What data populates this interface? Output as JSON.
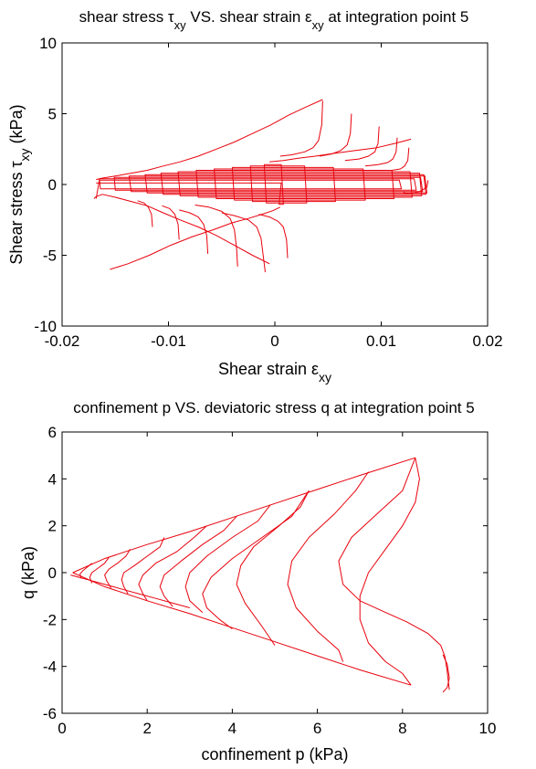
{
  "colors": {
    "series": "#e8000b",
    "axes": "#000000",
    "background": "#ffffff"
  },
  "chart_data": [
    {
      "type": "line",
      "title": "shear stress τxy VS. shear strain εxy at integration point 5",
      "title_parts": {
        "pre": "shear stress τ",
        "sub1": "xy",
        "mid": " VS. shear strain ε",
        "sub2": "xy",
        "post": " at integration point 5"
      },
      "xlabel": "Shear strain εxy",
      "xlabel_parts": {
        "pre": "Shear strain ε",
        "sub": "xy"
      },
      "ylabel": "Shear stress τxy (kPa)",
      "ylabel_parts": {
        "pre": "Shear stress τ",
        "sub": "xy",
        "post": " (kPa)"
      },
      "xlim": [
        -0.02,
        0.02
      ],
      "ylim": [
        -10,
        10
      ],
      "xticks": [
        -0.02,
        -0.01,
        0,
        0.01,
        0.02
      ],
      "xtick_labels": [
        "-0.02",
        "-0.01",
        "0",
        "0.01",
        "0.02"
      ],
      "yticks": [
        -10,
        -5,
        0,
        5,
        10
      ],
      "ytick_labels": [
        "-10",
        "-5",
        "0",
        "5",
        "10"
      ],
      "grid": false,
      "series": [
        {
          "x": [
            -0.0168,
            -0.0165,
            0.0117,
            0.0119,
            -0.0164,
            -0.0165,
            0.0131,
            0.0133,
            -0.015,
            -0.0151,
            0.0137,
            0.0139,
            -0.0135,
            -0.0137,
            0.0141,
            0.0143,
            -0.012,
            -0.0122,
            0.014,
            0.0142,
            -0.0105,
            -0.0107,
            0.0136,
            0.0138,
            -0.0089,
            -0.0091,
            0.0127,
            0.0129,
            -0.0072,
            -0.0074,
            0.011,
            0.0112,
            -0.0055,
            -0.0057,
            0.0083,
            0.0085,
            -0.0038,
            -0.004,
            0.0055,
            0.0057,
            -0.0021,
            -0.0023,
            0.0028,
            0.003,
            -0.0008,
            -0.001,
            0.0006,
            0.0008,
            0.0004,
            0.0006,
            -0.0168
          ],
          "y": [
            -1.0,
            0.3,
            0.3,
            -0.3,
            -0.3,
            0.4,
            0.4,
            -0.4,
            -0.4,
            0.5,
            0.5,
            -0.5,
            -0.5,
            0.6,
            0.6,
            -0.6,
            -0.6,
            0.7,
            0.7,
            -0.7,
            -0.7,
            0.8,
            0.8,
            -0.8,
            -0.8,
            0.9,
            0.9,
            -0.9,
            -0.9,
            1.0,
            1.0,
            -1.0,
            -1.0,
            1.1,
            1.1,
            -1.1,
            -1.1,
            1.2,
            1.2,
            -1.2,
            -1.2,
            1.3,
            1.3,
            -1.3,
            -1.3,
            1.4,
            1.4,
            -1.4,
            -1.4,
            0.1,
            0.1
          ]
        },
        {
          "x": [
            0.0144,
            0.0143,
            0.0136,
            0.013,
            0.0125,
            0.0122,
            0.0121,
            0.0122
          ],
          "y": [
            0.3,
            -0.2,
            -0.5,
            -0.6,
            -0.62,
            -0.62,
            -0.6,
            -0.5
          ]
        },
        {
          "x": [
            -0.017,
            -0.0168,
            -0.0162,
            -0.015,
            -0.0135,
            -0.012,
            -0.0105,
            -0.0089,
            -0.0072,
            -0.0055,
            -0.0038,
            -0.0021,
            -0.0005
          ],
          "y": [
            -1.0,
            -0.85,
            -0.7,
            -0.9,
            -1.2,
            -1.5,
            -2.0,
            -2.5,
            -3.0,
            -3.6,
            -4.3,
            -5.0,
            -5.6
          ]
        },
        {
          "x": [
            -0.0168,
            -0.0162,
            -0.015,
            -0.0135,
            -0.012,
            -0.0105,
            -0.0089,
            -0.0072,
            -0.0055,
            -0.0038,
            -0.0021,
            -0.0004,
            0.0013,
            0.003,
            0.0045
          ],
          "y": [
            0.35,
            0.45,
            0.6,
            0.8,
            1.0,
            1.3,
            1.6,
            2.0,
            2.5,
            3.0,
            3.6,
            4.2,
            4.9,
            5.5,
            6.0
          ]
        },
        {
          "x": [
            -0.0035,
            -0.0036,
            -0.0038,
            -0.0042,
            -0.005,
            -0.0062,
            -0.0075
          ],
          "y": [
            -5.8,
            -4.5,
            -3.2,
            -2.4,
            -1.9,
            -1.6,
            -1.45
          ]
        },
        {
          "x": [
            -0.0009,
            -0.0011,
            -0.0013,
            -0.0017,
            -0.0025,
            -0.0038,
            -0.005
          ],
          "y": [
            -6.2,
            -5.0,
            -3.8,
            -3.0,
            -2.5,
            -2.2,
            -2.0
          ]
        },
        {
          "x": [
            0.0045,
            0.0044,
            0.0041,
            0.0036,
            0.0028,
            0.0016,
            0.0005
          ],
          "y": [
            5.9,
            4.2,
            3.1,
            2.6,
            2.3,
            2.1,
            2.0
          ]
        },
        {
          "x": [
            0.0072,
            0.0071,
            0.0068,
            0.0062,
            0.0053,
            0.0042
          ],
          "y": [
            5.0,
            3.6,
            2.8,
            2.4,
            2.15,
            2.0
          ]
        },
        {
          "x": [
            0.0098,
            0.0097,
            0.0094,
            0.0088,
            0.0079,
            0.0066
          ],
          "y": [
            4.1,
            2.9,
            2.3,
            2.0,
            1.8,
            1.7
          ]
        },
        {
          "x": [
            0.0115,
            0.0114,
            0.0111,
            0.0106,
            0.0097,
            0.0085
          ],
          "y": [
            3.3,
            2.3,
            1.8,
            1.55,
            1.4,
            1.3
          ]
        },
        {
          "x": [
            0.0126,
            0.0125,
            0.0122,
            0.0118,
            0.011
          ],
          "y": [
            2.6,
            1.7,
            1.3,
            1.1,
            1.0
          ]
        },
        {
          "x": [
            0.0012,
            0.0011,
            0.0008,
            0.0003,
            -0.0005,
            -0.0015
          ],
          "y": [
            -5.2,
            -3.9,
            -3.0,
            -2.6,
            -2.3,
            -2.1
          ]
        },
        {
          "x": [
            -0.0063,
            -0.0064,
            -0.0067,
            -0.0072,
            -0.008,
            -0.009
          ],
          "y": [
            -4.9,
            -3.6,
            -2.8,
            -2.3,
            -2.0,
            -1.8
          ]
        },
        {
          "x": [
            -0.009,
            -0.0091,
            -0.0094,
            -0.0099,
            -0.0106
          ],
          "y": [
            -3.9,
            -2.8,
            -2.1,
            -1.7,
            -1.5
          ]
        },
        {
          "x": [
            -0.0115,
            -0.0116,
            -0.0119,
            -0.0123,
            -0.0129
          ],
          "y": [
            -3.0,
            -2.1,
            -1.6,
            -1.3,
            -1.15
          ]
        },
        {
          "x": [
            0.0005,
            -0.0002,
            -0.0012,
            -0.0025,
            -0.004,
            -0.0058,
            -0.0078,
            -0.0098,
            -0.0118,
            -0.0138,
            -0.0155
          ],
          "y": [
            -1.6,
            -1.85,
            -2.1,
            -2.4,
            -2.7,
            -3.2,
            -3.7,
            -4.3,
            -5.0,
            -5.6,
            -6.0
          ]
        },
        {
          "x": [
            -0.0005,
            0.0008,
            0.0022,
            0.0038,
            0.0056,
            0.0076,
            0.0096,
            0.0113,
            0.0128
          ],
          "y": [
            1.6,
            1.7,
            1.85,
            2.0,
            2.2,
            2.4,
            2.6,
            2.9,
            3.2
          ]
        }
      ]
    },
    {
      "type": "line",
      "title": "confinement p VS. deviatoric stress q at integration point 5",
      "xlabel": "confinement p (kPa)",
      "ylabel": "q (kPa)",
      "xlim": [
        0,
        10
      ],
      "ylim": [
        -6,
        6
      ],
      "xticks": [
        0,
        2,
        4,
        6,
        8,
        10
      ],
      "xtick_labels": [
        "0",
        "2",
        "4",
        "6",
        "8",
        "10"
      ],
      "yticks": [
        -6,
        -4,
        -2,
        0,
        2,
        4,
        6
      ],
      "ytick_labels": [
        "-6",
        "-4",
        "-2",
        "0",
        "2",
        "4",
        "6"
      ],
      "grid": false,
      "series": [
        {
          "x": [
            0.25,
            1.0,
            2.0,
            3.0,
            4.0,
            5.0,
            6.0,
            7.0,
            8.3
          ],
          "y": [
            0.0,
            0.6,
            1.2,
            1.75,
            2.35,
            2.95,
            3.55,
            4.15,
            4.9
          ]
        },
        {
          "x": [
            0.25,
            1.0,
            2.0,
            3.0,
            4.0,
            5.0,
            6.0,
            7.0,
            8.2
          ],
          "y": [
            0.0,
            -0.6,
            -1.2,
            -1.75,
            -2.35,
            -2.95,
            -3.55,
            -4.15,
            -4.8
          ]
        },
        {
          "x": [
            8.3,
            8.4,
            8.3,
            8.0,
            7.6,
            7.2,
            7.0,
            7.0,
            7.2,
            7.6,
            8.0,
            8.2
          ],
          "y": [
            4.9,
            4.0,
            3.0,
            2.0,
            1.0,
            0.0,
            -1.0,
            -2.0,
            -3.0,
            -3.8,
            -4.3,
            -4.8
          ]
        },
        {
          "x": [
            8.3,
            8.0,
            7.4,
            6.8,
            6.5,
            6.6,
            7.0,
            7.6,
            8.1,
            8.6,
            8.9,
            9.0,
            9.05,
            9.1
          ],
          "y": [
            4.9,
            3.5,
            2.5,
            1.5,
            0.5,
            -0.5,
            -1.2,
            -1.7,
            -2.1,
            -2.6,
            -3.1,
            -3.6,
            -4.2,
            -5.0
          ]
        },
        {
          "x": [
            8.95,
            9.05,
            9.1,
            9.05,
            8.95
          ],
          "y": [
            -3.5,
            -3.9,
            -4.5,
            -4.9,
            -5.1
          ]
        },
        {
          "x": [
            7.2,
            6.9,
            6.4,
            5.8,
            5.4,
            5.3,
            5.5,
            6.0,
            6.5,
            6.6
          ],
          "y": [
            4.3,
            3.5,
            2.5,
            1.5,
            0.5,
            -0.5,
            -1.5,
            -2.5,
            -3.3,
            -3.8
          ]
        },
        {
          "x": [
            5.8,
            5.6,
            5.1,
            4.5,
            4.2,
            4.1,
            4.3,
            4.7,
            5.0
          ],
          "y": [
            3.5,
            2.8,
            2.0,
            1.1,
            0.3,
            -0.5,
            -1.3,
            -2.3,
            -3.1
          ]
        },
        {
          "x": [
            5.8,
            5.4,
            4.7,
            4.0,
            3.5,
            3.3,
            3.4,
            3.7,
            4.0
          ],
          "y": [
            3.5,
            2.4,
            1.5,
            0.6,
            -0.2,
            -0.9,
            -1.5,
            -2.0,
            -2.4
          ]
        },
        {
          "x": [
            4.9,
            4.6,
            4.0,
            3.4,
            3.0,
            2.9,
            3.0,
            3.3
          ],
          "y": [
            2.9,
            2.2,
            1.5,
            0.7,
            0.0,
            -0.6,
            -1.2,
            -1.7
          ]
        },
        {
          "x": [
            4.1,
            3.8,
            3.3,
            2.8,
            2.4,
            2.3,
            2.4,
            2.6
          ],
          "y": [
            2.4,
            1.8,
            1.2,
            0.5,
            -0.1,
            -0.6,
            -1.0,
            -1.45
          ]
        },
        {
          "x": [
            3.4,
            3.1,
            2.7,
            2.2,
            1.9,
            1.8,
            1.9,
            2.0
          ],
          "y": [
            2.0,
            1.5,
            0.9,
            0.4,
            -0.1,
            -0.5,
            -0.9,
            -1.2
          ]
        },
        {
          "x": [
            2.4,
            2.3,
            2.0,
            1.7,
            1.45,
            1.4,
            1.45,
            1.55
          ],
          "y": [
            1.5,
            1.1,
            0.7,
            0.3,
            0.0,
            -0.3,
            -0.6,
            -0.9
          ]
        },
        {
          "x": [
            1.6,
            1.5,
            1.3,
            1.1,
            1.0,
            1.05,
            1.15
          ],
          "y": [
            1.0,
            0.7,
            0.4,
            0.15,
            -0.1,
            -0.35,
            -0.65
          ]
        },
        {
          "x": [
            1.1,
            1.0,
            0.85,
            0.7,
            0.65,
            0.7
          ],
          "y": [
            0.65,
            0.4,
            0.2,
            0.0,
            -0.2,
            -0.45
          ]
        },
        {
          "x": [
            0.7,
            0.6,
            0.5,
            0.42,
            0.45
          ],
          "y": [
            0.4,
            0.25,
            0.1,
            -0.05,
            -0.25
          ]
        },
        {
          "x": [
            0.2,
            0.4,
            0.6,
            0.9,
            1.2,
            1.5,
            1.8,
            2.2,
            2.6,
            3.0
          ],
          "y": [
            -0.1,
            -0.2,
            -0.3,
            -0.45,
            -0.6,
            -0.75,
            -0.9,
            -1.1,
            -1.3,
            -1.5
          ]
        }
      ]
    }
  ]
}
